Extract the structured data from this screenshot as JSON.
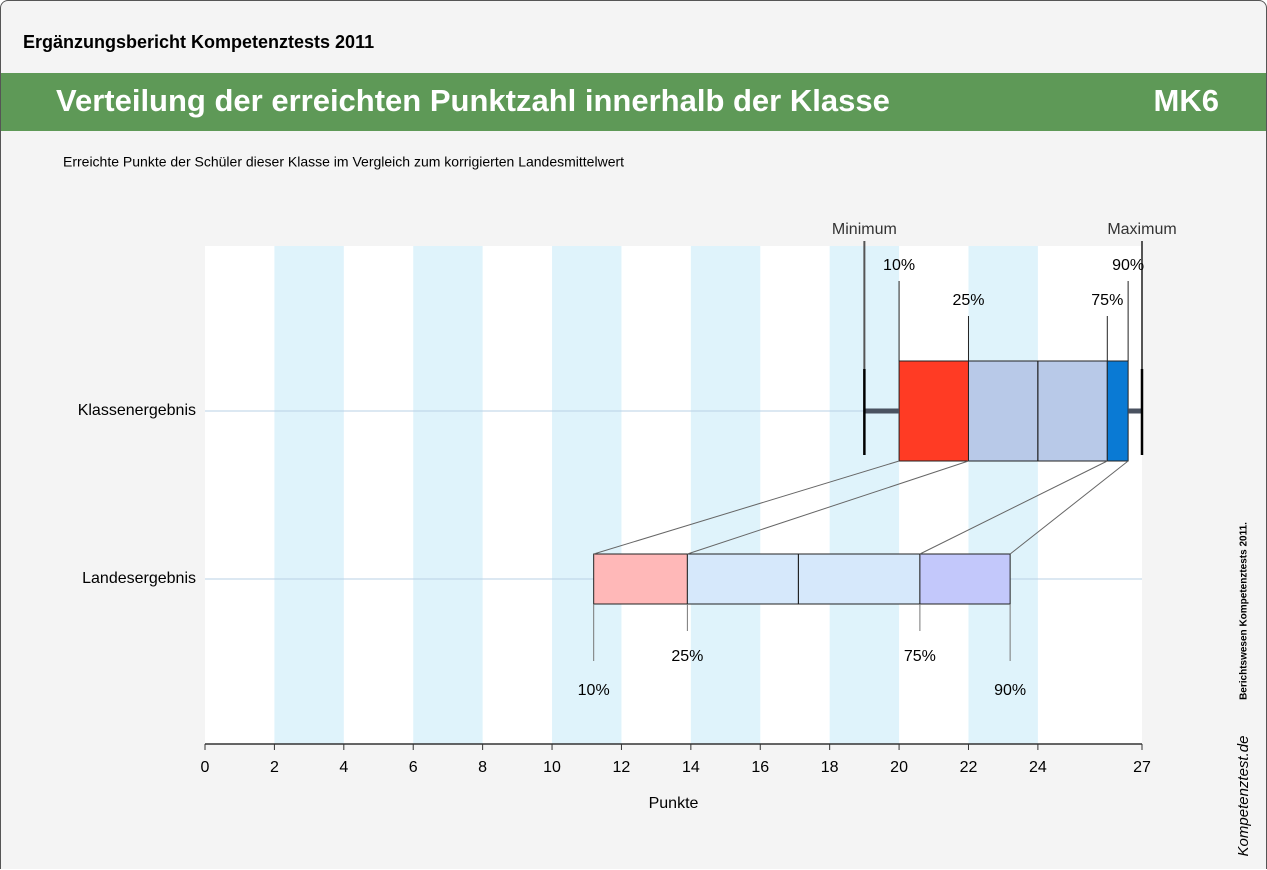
{
  "header": {
    "report": "Ergänzungsbericht Kompetenztests 2011",
    "title": "Verteilung der erreichten Punktzahl innerhalb der Klasse",
    "code": "MK6",
    "subtitle": "Erreichte Punkte der Schüler dieser Klasse im Vergleich zum korrigierten Landesmittelwert"
  },
  "side": {
    "note": "Berichtswesen Kompetenztests 2011.",
    "logo": "Kompetenztest.de"
  },
  "chart_data": {
    "type": "boxplot",
    "x_label": "Punkte",
    "xlim": [
      0,
      27
    ],
    "xticks": [
      0,
      2,
      4,
      6,
      8,
      10,
      12,
      14,
      16,
      18,
      20,
      22,
      24,
      27
    ],
    "bands": [
      [
        2,
        4
      ],
      [
        6,
        8
      ],
      [
        10,
        12
      ],
      [
        14,
        16
      ],
      [
        18,
        20
      ],
      [
        22,
        24
      ]
    ],
    "band_color": "#dff3fb",
    "marker_labels": {
      "min": "Minimum",
      "max": "Maximum",
      "p10": "10%",
      "p25": "25%",
      "p75": "75%",
      "p90": "90%"
    },
    "series": [
      {
        "name": "Klassenergebnis",
        "min": 19,
        "p10": 20,
        "p25": 22,
        "median": 24,
        "p75": 26,
        "p90": 26.6,
        "max": 27,
        "colors": [
          "#ff3b24",
          "#b8c9e8",
          "#b8c9e8",
          "#0a7ad4"
        ]
      },
      {
        "name": "Landesergebnis",
        "p10": 11.2,
        "p25": 13.9,
        "median": 17.1,
        "p75": 20.6,
        "p90": 23.2,
        "colors": [
          "#ffb8b8",
          "#d6e8fb",
          "#d6e8fb",
          "#c3c8fb"
        ]
      }
    ]
  }
}
